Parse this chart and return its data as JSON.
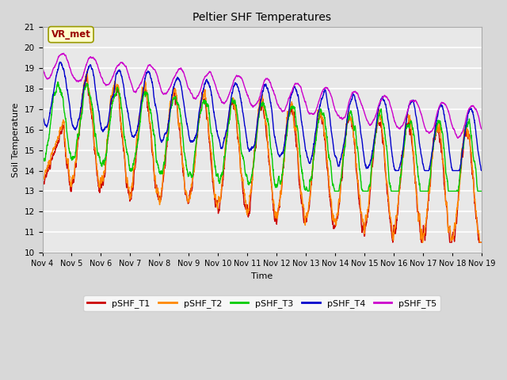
{
  "title": "Peltier SHF Temperatures",
  "xlabel": "Time",
  "ylabel": "Soil Temperature",
  "ylim": [
    10.0,
    21.0
  ],
  "yticks": [
    10.0,
    11.0,
    12.0,
    13.0,
    14.0,
    15.0,
    16.0,
    17.0,
    18.0,
    19.0,
    20.0,
    21.0
  ],
  "plot_bg_color": "#d8d8d8",
  "fig_bg_color": "#d8d8d8",
  "grid_color": "#ffffff",
  "inner_bg_color": "#e8e8e8",
  "annotation_label": "VR_met",
  "annotation_bg": "#ffffcc",
  "annotation_border": "#999900",
  "annotation_text_color": "#990000",
  "series": [
    {
      "label": "pSHF_T1",
      "color": "#cc0000"
    },
    {
      "label": "pSHF_T2",
      "color": "#ff8800"
    },
    {
      "label": "pSHF_T3",
      "color": "#00cc00"
    },
    {
      "label": "pSHF_T4",
      "color": "#0000cc"
    },
    {
      "label": "pSHF_T5",
      "color": "#cc00cc"
    }
  ],
  "xtick_labels": [
    "Nov 4",
    "Nov 5",
    "Nov 6",
    "Nov 7",
    "Nov 8",
    "Nov 9",
    "Nov 10",
    "Nov 11",
    "Nov 12",
    "Nov 13",
    "Nov 14",
    "Nov 15",
    "Nov 16",
    "Nov 17",
    "Nov 18",
    "Nov 19"
  ],
  "n_points": 3000,
  "seed": 42
}
